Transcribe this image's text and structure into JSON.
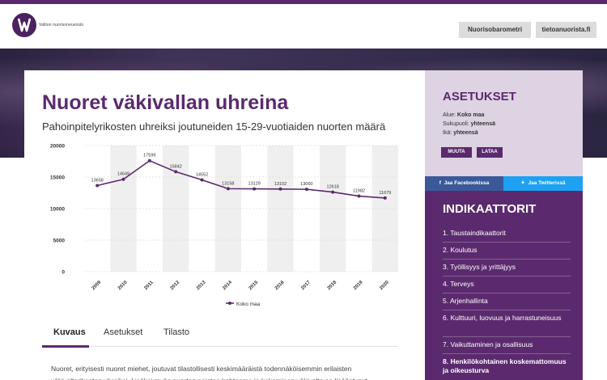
{
  "header": {
    "logo_text": "Valtion nuorisoneuvosto",
    "buttons": [
      "Nuorisobarometri",
      "tietoanuorista.fi"
    ]
  },
  "main": {
    "title": "Nuoret väkivallan uhreina",
    "subtitle": "Pahoinpitelyrikosten uhreiksi joutuneiden 15-29-vuotiaiden nuorten määrä",
    "tabs": [
      "Kuvaus",
      "Asetukset",
      "Tilasto"
    ],
    "description": "Nuoret, erityisesti nuoret miehet, joutuvat tilastollisesti keskimääräistä todennäköisemmin erilaisten väkivaltarikosten uhreiksi. Lisäksi myös nuorten naisten kohtaama ja kokeminen väkivalta on lisääntynyt."
  },
  "chart_data": {
    "type": "line",
    "categories": [
      "2009",
      "2010",
      "2011",
      "2012",
      "2013",
      "2014",
      "2015",
      "2016",
      "2017",
      "2018",
      "2019",
      "2020"
    ],
    "series": [
      {
        "name": "Koko maa",
        "values": [
          13658,
          14649,
          17599,
          15842,
          14552,
          13158,
          13129,
          13102,
          13060,
          12618,
          11982,
          11679
        ]
      }
    ],
    "yticks": [
      0,
      5000,
      10000,
      15000,
      20000
    ],
    "ylim": [
      0,
      20000
    ],
    "legend_position": "bottom",
    "colors": {
      "line": "#5b2a6e",
      "band": "#efefef",
      "grid": "#dddddd"
    }
  },
  "settings": {
    "title": "ASETUKSET",
    "lines": [
      {
        "label": "Alue:",
        "value": "Koko maa"
      },
      {
        "label": "Sukupuoli:",
        "value": "yhteensä"
      },
      {
        "label": "Ikä:",
        "value": "yhteensä"
      }
    ],
    "buttons": [
      "MUUTA",
      "LATAA"
    ]
  },
  "share": {
    "facebook": "Jaa Facebookissa",
    "twitter": "Jaa Twitterissä"
  },
  "indicators": {
    "title": "INDIKAATTORIT",
    "items": [
      "1. Taustaindikaattorit",
      "2. Koulutus",
      "3. Työllisyys ja yrittäjyys",
      "4. Terveys",
      "5. Arjenhallinta",
      "6. Kulttuuri, luovuus ja harrastuneisuus",
      "7. Vaikuttaminen ja osallisuus",
      "8. Henkilökohtainen koskemattomuus ja oikeusturva"
    ],
    "active_index": 7
  },
  "colors": {
    "brand": "#5b2a6e",
    "facebook": "#3b5998",
    "twitter": "#1da1f2"
  }
}
